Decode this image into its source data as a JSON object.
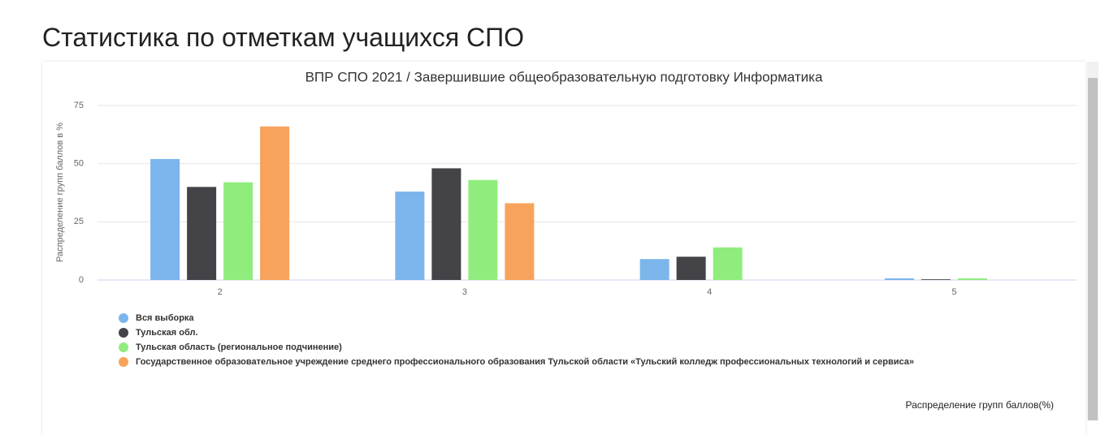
{
  "heading": "Статистика по отметкам учащихся СПО",
  "chart_data": {
    "type": "bar",
    "title": "ВПР СПО 2021 / Завершившие общеобразовательную подготовку Информатика",
    "ylabel": "Распределение групп баллов в %",
    "xlabel": "Распределение групп баллов(%)",
    "categories": [
      "2",
      "3",
      "4",
      "5"
    ],
    "series": [
      {
        "name": "Вся выборка",
        "color": "#7cb5ec",
        "values": [
          52,
          38,
          9,
          0.7
        ]
      },
      {
        "name": "Тульская обл.",
        "color": "#434348",
        "values": [
          40,
          48,
          10,
          0.3
        ]
      },
      {
        "name": "Тульская область (региональное подчинение)",
        "color": "#90ed7d",
        "values": [
          42,
          43,
          14,
          0.7
        ]
      },
      {
        "name": "Государственное образовательное учреждение среднего профессионального образования Тульской области «Тульский колледж профессиональных технологий и сервиса»",
        "color": "#f7a35c",
        "values": [
          66,
          33,
          0,
          0
        ]
      }
    ],
    "ylim": [
      0,
      75
    ],
    "yticks": [
      0,
      25,
      50,
      75
    ],
    "grid": true,
    "legend": "bottom-left"
  }
}
